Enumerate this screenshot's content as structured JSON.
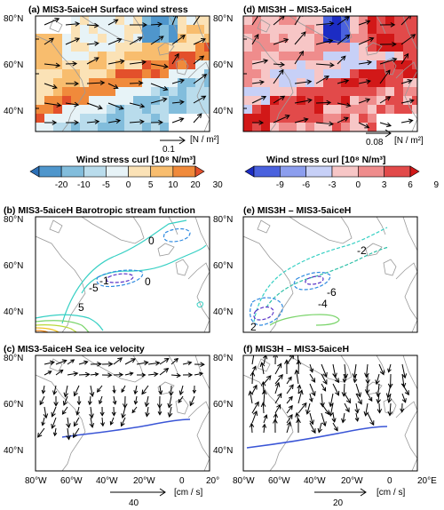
{
  "panels": {
    "a": {
      "title": "(a) MIS3-5aiceH Surface wind stress",
      "ref_value": "0.1",
      "ref_unit": "[N / m²]"
    },
    "d": {
      "title": "(d) MIS3H – MIS3-5aiceH",
      "ref_value": "0.08",
      "ref_unit": "[N / m²]"
    },
    "b": {
      "title": "(b) MIS3-5aiceH  Barotropic stream function",
      "contour_labels": [
        "0",
        "-5",
        "0",
        "5",
        "-1"
      ]
    },
    "e": {
      "title": "(e) MIS3H – MIS3-5aiceH",
      "contour_labels": [
        "-2",
        "-6",
        "-4",
        "2"
      ]
    },
    "c": {
      "title": "(c) MIS3-5aiceH  Sea ice velocity",
      "ref_value": "40",
      "ref_unit": "[cm / s]"
    },
    "f": {
      "title": "(f) MIS3H – MIS3-5aiceH",
      "ref_value": "20",
      "ref_unit": "[cm / s]"
    }
  },
  "colorbars": {
    "left": {
      "title": "Wind stress curl [10⁸ N/m³]",
      "ticks": [
        "-20",
        "-10",
        "-5",
        "0",
        "5",
        "10",
        "20",
        "30"
      ],
      "colors": [
        "#2b6fb6",
        "#4f96cc",
        "#82bddc",
        "#b9dcec",
        "#e7f3f7",
        "#fbe2b6",
        "#f8bd6e",
        "#f08a3b",
        "#e3502b"
      ]
    },
    "right": {
      "title": "Wind stress curl [10⁸ N/m³]",
      "ticks": [
        "-9",
        "-6",
        "-3",
        "0",
        "3",
        "6",
        "9"
      ],
      "colors": [
        "#1c2cc4",
        "#4a62de",
        "#8c9eee",
        "#c7d0f7",
        "#f7c6c6",
        "#ef8c8c",
        "#e24a4a",
        "#d21818"
      ]
    }
  },
  "axes": {
    "lat_labels": [
      "80°N",
      "60°N",
      "40°N"
    ],
    "lon_labels": [
      "80°W",
      "60°W",
      "40°W",
      "20°W",
      "0",
      "20°"
    ],
    "lon_labels_last_right": "20°E"
  },
  "colors": {
    "coast": "#9a9a9a",
    "arrow": "#000000",
    "ice_edge": "#3a55d6"
  }
}
